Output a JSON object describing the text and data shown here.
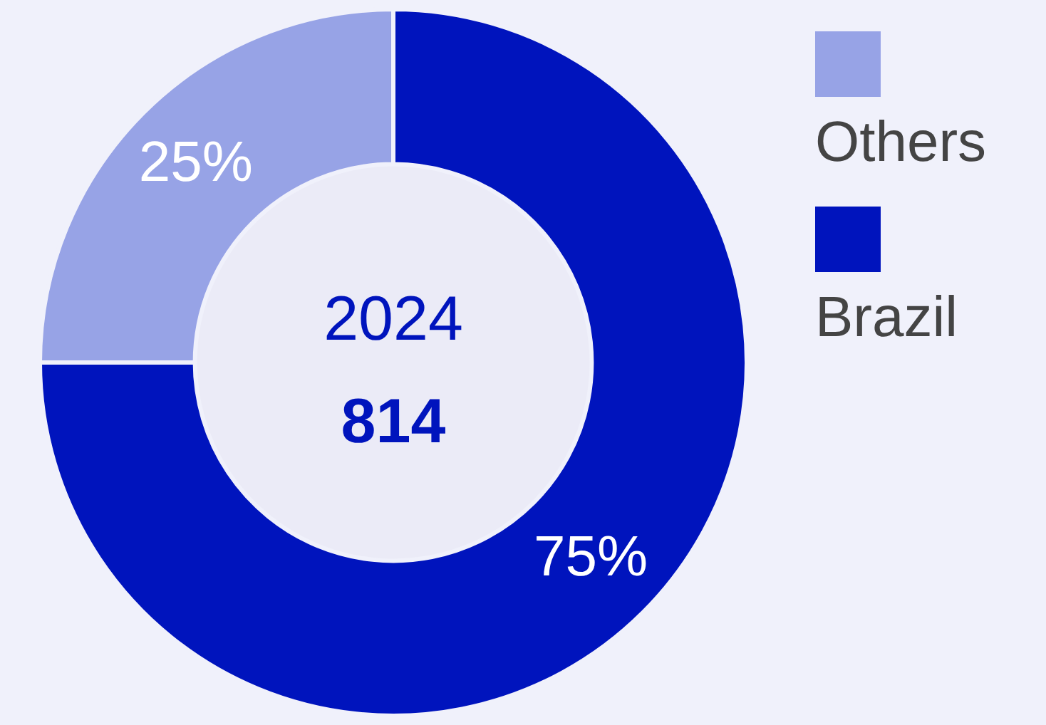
{
  "chart_data": {
    "type": "donut",
    "categories": [
      "Others",
      "Brazil"
    ],
    "values": [
      25,
      75
    ],
    "colors": [
      "#97a3e6",
      "#0014bd"
    ],
    "value_labels": [
      "25%",
      "75%"
    ],
    "annotations": [
      "2024",
      "814"
    ],
    "legend": "right"
  }
}
